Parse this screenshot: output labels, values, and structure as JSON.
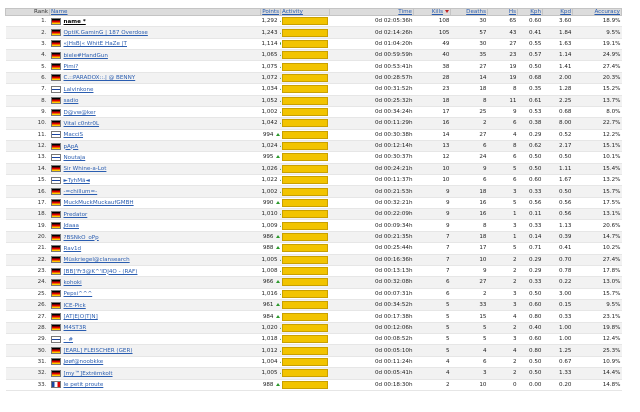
{
  "headers": {
    "rank": "Rank",
    "name": "Name",
    "points": "Points",
    "activity": "Activity",
    "time": "Time",
    "kills": "Kills",
    "deaths": "Deaths",
    "hs": "Hs",
    "kph": "Kph",
    "kpd": "Kpd",
    "accuracy": "Accuracy"
  },
  "players": [
    {
      "rank": "1.",
      "flag": "de",
      "name": "name *",
      "points": "1,292",
      "trend": "up",
      "time": "0d 02:05:36h",
      "kills": "108",
      "deaths": "30",
      "hs": "65",
      "kph": "0.60",
      "kpd": "3.60",
      "acc": "18.9%"
    },
    {
      "rank": "2.",
      "flag": "de",
      "name": "OptiK.GaminG | 187 Overdose",
      "points": "1,243",
      "trend": "up",
      "time": "0d 02:14:26h",
      "kills": "105",
      "deaths": "57",
      "hs": "43",
      "kph": "0.41",
      "kpd": "1.84",
      "acc": "9.5%"
    },
    {
      "rank": "3.",
      "flag": "de",
      "name": "«|HsB|« WhitE HaZe |T",
      "points": "1,114",
      "trend": "same",
      "time": "0d 01:04:20h",
      "kills": "49",
      "deaths": "30",
      "hs": "27",
      "kph": "0.55",
      "kpd": "1.63",
      "acc": "19.1%"
    },
    {
      "rank": "4.",
      "flag": "de",
      "name": "biele#HandGun",
      "points": "1,065",
      "trend": "up",
      "time": "0d 00:59:59h",
      "kills": "40",
      "deaths": "35",
      "hs": "23",
      "kph": "0.57",
      "kpd": "1.14",
      "acc": "24.9%"
    },
    {
      "rank": "5.",
      "flag": "de",
      "name": "Pimi?",
      "points": "1,075",
      "trend": "up",
      "time": "0d 00:53:41h",
      "kills": "38",
      "deaths": "27",
      "hs": "19",
      "kph": "0.50",
      "kpd": "1.41",
      "acc": "27.4%"
    },
    {
      "rank": "6.",
      "flag": "de",
      "name": "C.::PARADOX::.| @ BENNY",
      "points": "1,072",
      "trend": "up",
      "time": "0d 00:28:57h",
      "kills": "28",
      "deaths": "14",
      "hs": "19",
      "kph": "0.68",
      "kpd": "2.00",
      "acc": "20.3%"
    },
    {
      "rank": "7.",
      "flag": "fi",
      "name": "Lalvinkone",
      "points": "1,034",
      "trend": "up",
      "time": "0d 00:31:52h",
      "kills": "23",
      "deaths": "18",
      "hs": "8",
      "kph": "0.35",
      "kpd": "1.28",
      "acc": "15.2%"
    },
    {
      "rank": "8.",
      "flag": "de",
      "name": "sadio",
      "points": "1,052",
      "trend": "up",
      "time": "0d 00:25:32h",
      "kills": "18",
      "deaths": "8",
      "hs": "11",
      "kph": "0.61",
      "kpd": "2.25",
      "acc": "13.7%"
    },
    {
      "rank": "9.",
      "flag": "de",
      "name": "D@vw@ker",
      "points": "1,002",
      "trend": "up",
      "time": "0d 00:34:24h",
      "kills": "17",
      "deaths": "25",
      "hs": "9",
      "kph": "0.53",
      "kpd": "0.68",
      "acc": "8.0%"
    },
    {
      "rank": "10.",
      "flag": "de",
      "name": "Vital c0ntr0L",
      "points": "1,042",
      "trend": "up",
      "time": "0d 00:11:29h",
      "kills": "16",
      "deaths": "2",
      "hs": "6",
      "kph": "0.38",
      "kpd": "8.00",
      "acc": "22.7%"
    },
    {
      "rank": "11.",
      "flag": "fi",
      "name": "MacciS",
      "points": "994",
      "trend": "up",
      "time": "0d 00:30:38h",
      "kills": "14",
      "deaths": "27",
      "hs": "4",
      "kph": "0.29",
      "kpd": "0.52",
      "acc": "12.2%"
    },
    {
      "rank": "12.",
      "flag": "de",
      "name": "pApA",
      "points": "1,024",
      "trend": "up",
      "time": "0d 00:12:14h",
      "kills": "13",
      "deaths": "6",
      "hs": "8",
      "kph": "0.62",
      "kpd": "2.17",
      "acc": "15.1%"
    },
    {
      "rank": "13.",
      "flag": "fi",
      "name": "Noutaja",
      "points": "995",
      "trend": "up",
      "time": "0d 00:30:37h",
      "kills": "12",
      "deaths": "24",
      "hs": "6",
      "kph": "0.50",
      "kpd": "0.50",
      "acc": "10.1%"
    },
    {
      "rank": "14.",
      "flag": "de",
      "name": "Sir Whine-a-Lot",
      "points": "1,026",
      "trend": "up",
      "time": "0d 00:24:21h",
      "kills": "10",
      "deaths": "9",
      "hs": "5",
      "kph": "0.50",
      "kpd": "1.11",
      "acc": "15.4%"
    },
    {
      "rank": "15.",
      "flag": "fi",
      "name": "►TyhMä◄",
      "points": "1,022",
      "trend": "up",
      "time": "0d 00:11:37h",
      "kills": "10",
      "deaths": "6",
      "hs": "6",
      "kph": "0.60",
      "kpd": "1.67",
      "acc": "13.2%"
    },
    {
      "rank": "16.",
      "flag": "de",
      "name": "-=chillum=-",
      "points": "1,002",
      "trend": "up",
      "time": "0d 00:21:53h",
      "kills": "9",
      "deaths": "18",
      "hs": "3",
      "kph": "0.33",
      "kpd": "0.50",
      "acc": "15.7%"
    },
    {
      "rank": "17.",
      "flag": "de",
      "name": "MuckMuckMuckaufGMBH",
      "points": "990",
      "trend": "up",
      "time": "0d 00:32:21h",
      "kills": "9",
      "deaths": "16",
      "hs": "5",
      "kph": "0.56",
      "kpd": "0.56",
      "acc": "17.5%"
    },
    {
      "rank": "18.",
      "flag": "de",
      "name": "Predator",
      "points": "1,010",
      "trend": "up",
      "time": "0d 00:22:09h",
      "kills": "9",
      "deaths": "16",
      "hs": "1",
      "kph": "0.11",
      "kpd": "0.56",
      "acc": "13.1%"
    },
    {
      "rank": "19.",
      "flag": "de",
      "name": "Jdaaa",
      "points": "1,009",
      "trend": "up",
      "time": "0d 00:09:34h",
      "kills": "9",
      "deaths": "8",
      "hs": "3",
      "kph": "0.33",
      "kpd": "1.13",
      "acc": "20.6%"
    },
    {
      "rank": "20.",
      "flag": "de",
      "name": "?BSNkO_oPp",
      "points": "986",
      "trend": "up",
      "time": "0d 00:21:35h",
      "kills": "7",
      "deaths": "18",
      "hs": "1",
      "kph": "0.14",
      "kpd": "0.39",
      "acc": "14.7%"
    },
    {
      "rank": "21.",
      "flag": "de",
      "name": "Rav1d",
      "points": "988",
      "trend": "up",
      "time": "0d 00:25:44h",
      "kills": "7",
      "deaths": "17",
      "hs": "5",
      "kph": "0.71",
      "kpd": "0.41",
      "acc": "10.2%"
    },
    {
      "rank": "22.",
      "flag": "de",
      "name": "Müskriegel@clansearch",
      "points": "1,005",
      "trend": "up",
      "time": "0d 00:16:36h",
      "kills": "7",
      "deaths": "10",
      "hs": "2",
      "kph": "0.29",
      "kpd": "0.70",
      "acc": "27.4%"
    },
    {
      "rank": "23.",
      "flag": "de",
      "name": "[BB]'Fr3@K^'IDJ4O - (RAF)",
      "points": "1,008",
      "trend": "up",
      "time": "0d 00:13:13h",
      "kills": "7",
      "deaths": "9",
      "hs": "2",
      "kph": "0.29",
      "kpd": "0.78",
      "acc": "17.8%"
    },
    {
      "rank": "24.",
      "flag": "de",
      "name": "kohoki",
      "points": "966",
      "trend": "up",
      "time": "0d 00:32:08h",
      "kills": "6",
      "deaths": "27",
      "hs": "2",
      "kph": "0.33",
      "kpd": "0.22",
      "acc": "13.0%"
    },
    {
      "rank": "25.",
      "flag": "de",
      "name": "Pepsi^^^",
      "points": "1,016",
      "trend": "up",
      "time": "0d 00:07:31h",
      "kills": "6",
      "deaths": "2",
      "hs": "3",
      "kph": "0.50",
      "kpd": "3.00",
      "acc": "15.7%"
    },
    {
      "rank": "26.",
      "flag": "de",
      "name": "ICE-Pick",
      "points": "961",
      "trend": "up",
      "time": "0d 00:34:52h",
      "kills": "5",
      "deaths": "33",
      "hs": "3",
      "kph": "0.60",
      "kpd": "0.15",
      "acc": "9.5%"
    },
    {
      "rank": "27.",
      "flag": "de",
      "name": "[AT|E|O|T|N]",
      "points": "984",
      "trend": "up",
      "time": "0d 00:17:38h",
      "kills": "5",
      "deaths": "15",
      "hs": "4",
      "kph": "0.80",
      "kpd": "0.33",
      "acc": "23.1%"
    },
    {
      "rank": "28.",
      "flag": "de",
      "name": "M4ST3R",
      "points": "1,020",
      "trend": "up",
      "time": "0d 00:12:06h",
      "kills": "5",
      "deaths": "5",
      "hs": "2",
      "kph": "0.40",
      "kpd": "1.00",
      "acc": "19.8%"
    },
    {
      "rank": "29.",
      "flag": "fi",
      "name": "-_#",
      "points": "1,018",
      "trend": "up",
      "time": "0d 00:08:52h",
      "kills": "5",
      "deaths": "5",
      "hs": "3",
      "kph": "0.60",
      "kpd": "1.00",
      "acc": "12.4%"
    },
    {
      "rank": "30.",
      "flag": "de",
      "name": "[EARL] FLEISCHER (GER)",
      "points": "1,012",
      "trend": "up",
      "time": "0d 00:05:10h",
      "kills": "5",
      "deaths": "4",
      "hs": "4",
      "kph": "0.80",
      "kpd": "1.25",
      "acc": "25.3%"
    },
    {
      "rank": "31.",
      "flag": "de",
      "name": "Jøøf@noobkke",
      "points": "1,004",
      "trend": "up",
      "time": "0d 00:11:24h",
      "kills": "4",
      "deaths": "6",
      "hs": "2",
      "kph": "0.50",
      "kpd": "0.67",
      "acc": "10.9%"
    },
    {
      "rank": "32.",
      "flag": "de",
      "name": "[my™]Extrëmkolt",
      "points": "1,005",
      "trend": "up",
      "time": "0d 00:05:41h",
      "kills": "4",
      "deaths": "3",
      "hs": "2",
      "kph": "0.50",
      "kpd": "1.33",
      "acc": "14.4%"
    },
    {
      "rank": "33.",
      "flag": "fr",
      "name": "le petit proute",
      "points": "988",
      "trend": "up",
      "time": "0d 00:18:30h",
      "kills": "2",
      "deaths": "10",
      "hs": "0",
      "kph": "0.00",
      "kpd": "0.20",
      "acc": "14.8%"
    }
  ]
}
